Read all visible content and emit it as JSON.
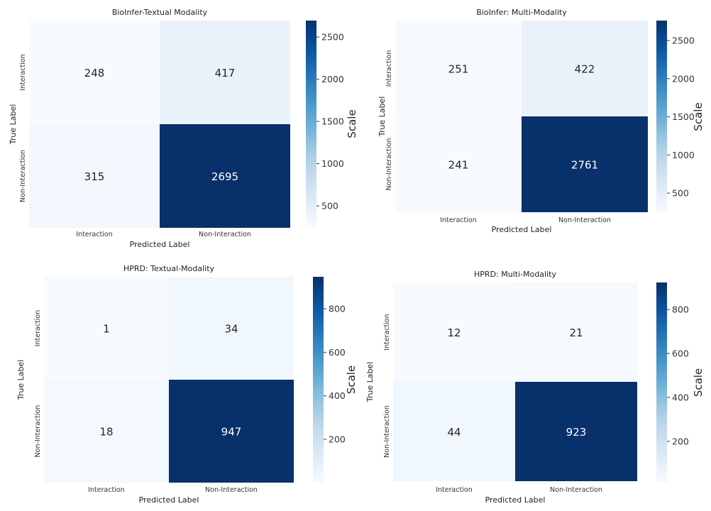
{
  "chart_data": [
    {
      "type": "heatmap",
      "title": "BioInfer-Textual Modality",
      "xlabel": "Predicted Label",
      "ylabel": "True Label",
      "x_categories": [
        "Interaction",
        "Non-Interaction"
      ],
      "y_categories": [
        "Interaction",
        "Non-Interaction"
      ],
      "values": [
        [
          248,
          417
        ],
        [
          315,
          2695
        ]
      ],
      "colorbar": {
        "label": "Scale",
        "ticks": [
          500,
          1000,
          1500,
          2000,
          2500
        ],
        "range": [
          248,
          2695
        ]
      },
      "colormap": "Blues"
    },
    {
      "type": "heatmap",
      "title": "BioInfer: Multi-Modality",
      "xlabel": "Predicted Label",
      "ylabel": "True Label",
      "x_categories": [
        "Interaction",
        "Non-Interaction"
      ],
      "y_categories": [
        "Interaction",
        "Non-Interaction"
      ],
      "values": [
        [
          251,
          422
        ],
        [
          241,
          2761
        ]
      ],
      "colorbar": {
        "label": "Scale",
        "ticks": [
          500,
          1000,
          1500,
          2000,
          2500
        ],
        "range": [
          241,
          2761
        ]
      },
      "colormap": "Blues"
    },
    {
      "type": "heatmap",
      "title": "HPRD: Textual-Modality",
      "xlabel": "Predicted Label",
      "ylabel": "True Label",
      "x_categories": [
        "Interaction",
        "Non-Interaction"
      ],
      "y_categories": [
        "Interaction",
        "Non-Interaction"
      ],
      "values": [
        [
          1,
          34
        ],
        [
          18,
          947
        ]
      ],
      "colorbar": {
        "label": "Scale",
        "ticks": [
          200,
          400,
          600,
          800
        ],
        "range": [
          1,
          947
        ]
      },
      "colormap": "Blues"
    },
    {
      "type": "heatmap",
      "title": "HPRD: Multi-Modality",
      "xlabel": "Predicted Label",
      "ylabel": "True Label",
      "x_categories": [
        "Interaction",
        "Non-Interaction"
      ],
      "y_categories": [
        "Interaction",
        "Non-Interaction"
      ],
      "values": [
        [
          12,
          21
        ],
        [
          44,
          923
        ]
      ],
      "colorbar": {
        "label": "Scale",
        "ticks": [
          200,
          400,
          600,
          800
        ],
        "range": [
          12,
          923
        ]
      },
      "colormap": "Blues"
    }
  ]
}
